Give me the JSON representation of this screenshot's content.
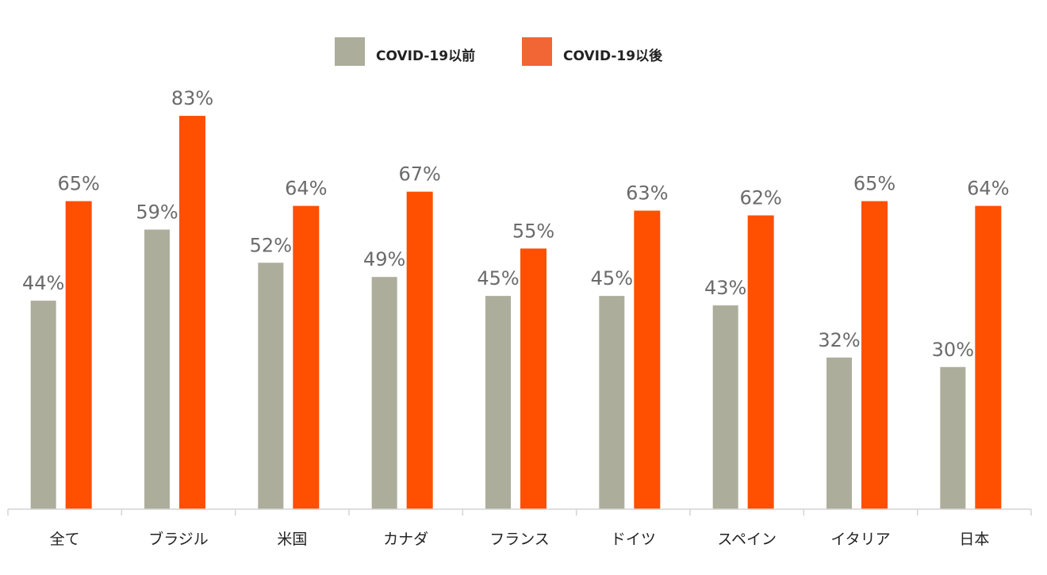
{
  "chart_data": {
    "type": "bar",
    "categories": [
      "全て",
      "ブラジル",
      "米国",
      "カナダ",
      "フランス",
      "ドイツ",
      "スペイン",
      "イタリア",
      "日本"
    ],
    "series": [
      {
        "name": "COVID-19以前",
        "values": [
          44,
          59,
          52,
          49,
          45,
          45,
          43,
          32,
          30
        ],
        "labels": [
          "44%",
          "59%",
          "52%",
          "49%",
          "45%",
          "45%",
          "43%",
          "32%",
          "30%"
        ],
        "color": "#adad9c"
      },
      {
        "name": "COVID-19以後",
        "values": [
          65,
          83,
          64,
          67,
          55,
          63,
          62,
          65,
          64
        ],
        "labels": [
          "65%",
          "83%",
          "64%",
          "67%",
          "55%",
          "63%",
          "62%",
          "65%",
          "64%"
        ],
        "color": "#ff4f00"
      }
    ],
    "legend_colors": [
      "#adad9c",
      "#f26535"
    ],
    "ylim": [
      0,
      100
    ],
    "grid": false,
    "legend_position": "top-center",
    "title": "",
    "xlabel": "",
    "ylabel": ""
  }
}
